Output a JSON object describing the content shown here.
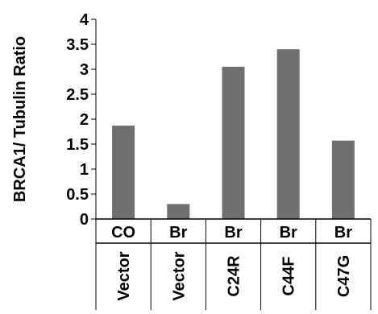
{
  "chart_data": {
    "type": "bar",
    "title": "",
    "xlabel": "",
    "ylabel": "BRCA1/ Tubulin Ratio",
    "ylim": [
      0,
      4
    ],
    "yticks": [
      "0",
      "0.5",
      "1",
      "1.5",
      "2",
      "2.5",
      "3",
      "3.5",
      "4"
    ],
    "grid": false,
    "categories": [
      {
        "top": "CO",
        "bottom": "Vector"
      },
      {
        "top": "Br",
        "bottom": "Vector"
      },
      {
        "top": "Br",
        "bottom": "C24R"
      },
      {
        "top": "Br",
        "bottom": "C44F"
      },
      {
        "top": "Br",
        "bottom": "C47G"
      }
    ],
    "values": [
      1.87,
      0.3,
      3.05,
      3.4,
      1.57
    ],
    "colors": {
      "bar": "#6f6f6f",
      "axis": "#000000"
    }
  }
}
